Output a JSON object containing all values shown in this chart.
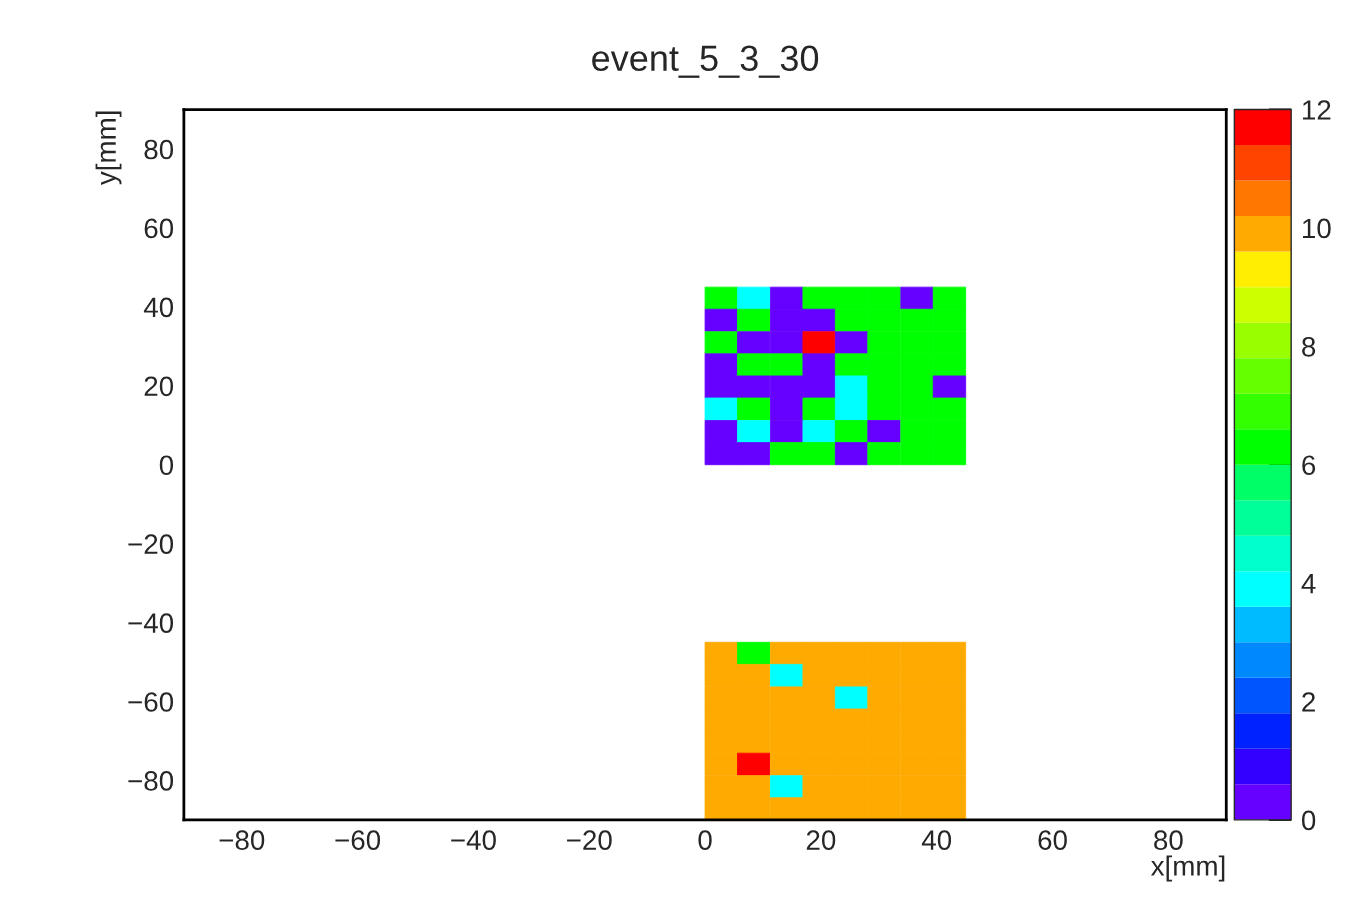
{
  "chart_data": {
    "type": "scatter",
    "title": "event_5_3_30",
    "xlabel": "x[mm]",
    "ylabel": "y[mm]",
    "marker": "square",
    "xlim": [
      -90,
      90
    ],
    "ylim": [
      -90,
      90
    ],
    "xticks": [
      {
        "value": -80,
        "label": "−80"
      },
      {
        "value": -60,
        "label": "−60"
      },
      {
        "value": -40,
        "label": "−40"
      },
      {
        "value": -20,
        "label": "−20"
      },
      0,
      20,
      40,
      60,
      80
    ],
    "yticks": [
      {
        "value": -80,
        "label": "−80"
      },
      {
        "value": -60,
        "label": "−60"
      },
      {
        "value": -40,
        "label": "−40"
      },
      {
        "value": -20,
        "label": "−20"
      },
      0,
      20,
      40,
      60,
      80
    ],
    "clim": [
      0,
      12
    ],
    "cticks": [
      0,
      2,
      4,
      6,
      8,
      10,
      12
    ],
    "x": [
      2.8,
      8.4,
      14.1,
      19.7,
      25.3,
      30.9,
      36.6,
      42.2,
      2.8,
      8.4,
      14.1,
      19.7,
      25.3,
      30.9,
      36.6,
      42.2,
      2.8,
      8.4,
      14.1,
      19.7,
      25.3,
      30.9,
      36.6,
      42.2,
      2.8,
      8.4,
      14.1,
      19.7,
      25.3,
      30.9,
      36.6,
      42.2,
      2.8,
      8.4,
      14.1,
      19.7,
      25.3,
      30.9,
      36.6,
      42.2,
      2.8,
      8.4,
      14.1,
      19.7,
      25.3,
      30.9,
      36.6,
      42.2,
      2.8,
      8.4,
      14.1,
      19.7,
      25.3,
      30.9,
      36.6,
      42.2,
      2.8,
      8.4,
      14.1,
      19.7,
      25.3,
      30.9,
      36.6,
      42.2,
      2.8,
      8.4,
      14.1,
      19.7,
      25.3,
      30.9,
      36.6,
      42.2,
      2.8,
      8.4,
      14.1,
      19.7,
      25.3,
      30.9,
      36.6,
      42.2,
      2.8,
      8.4,
      14.1,
      19.7,
      25.3,
      30.9,
      36.6,
      42.2,
      2.8,
      8.4,
      14.1,
      19.7,
      25.3,
      30.9,
      36.6,
      42.2,
      2.8,
      8.4,
      14.1,
      19.7,
      25.3,
      30.9,
      36.6,
      42.2,
      2.8,
      8.4,
      14.1,
      19.7,
      25.3,
      30.9,
      36.6,
      42.2,
      2.8,
      8.4,
      14.1,
      19.7,
      25.3,
      30.9,
      36.6,
      42.2,
      2.8,
      8.4,
      14.1,
      19.7,
      25.3,
      30.9,
      36.6,
      42.2
    ],
    "values": [
      42.2,
      42.2,
      42.2,
      42.2,
      42.2,
      42.2,
      42.2,
      42.2,
      36.6,
      36.6,
      36.6,
      36.6,
      36.6,
      36.6,
      36.6,
      36.6,
      30.9,
      30.9,
      30.9,
      30.9,
      30.9,
      30.9,
      30.9,
      30.9,
      25.3,
      25.3,
      25.3,
      25.3,
      25.3,
      25.3,
      25.3,
      25.3,
      19.7,
      19.7,
      19.7,
      19.7,
      19.7,
      19.7,
      19.7,
      19.7,
      14.1,
      14.1,
      14.1,
      14.1,
      14.1,
      14.1,
      14.1,
      14.1,
      8.4,
      8.4,
      8.4,
      8.4,
      8.4,
      8.4,
      8.4,
      8.4,
      2.8,
      2.8,
      2.8,
      2.8,
      2.8,
      2.8,
      2.8,
      2.8,
      -47.8,
      -47.8,
      -47.8,
      -47.8,
      -47.8,
      -47.8,
      -47.8,
      -47.8,
      -53.4,
      -53.4,
      -53.4,
      -53.4,
      -53.4,
      -53.4,
      -53.4,
      -53.4,
      -59.1,
      -59.1,
      -59.1,
      -59.1,
      -59.1,
      -59.1,
      -59.1,
      -59.1,
      -64.7,
      -64.7,
      -64.7,
      -64.7,
      -64.7,
      -64.7,
      -64.7,
      -64.7,
      -70.3,
      -70.3,
      -70.3,
      -70.3,
      -70.3,
      -70.3,
      -70.3,
      -70.3,
      -75.9,
      -75.9,
      -75.9,
      -75.9,
      -75.9,
      -75.9,
      -75.9,
      -75.9,
      -81.6,
      -81.6,
      -81.6,
      -81.6,
      -81.6,
      -81.6,
      -81.6,
      -81.6,
      -87.2,
      -87.2,
      -87.2,
      -87.2,
      -87.2,
      -87.2,
      -87.2,
      -87.2
    ],
    "cvalues": [
      6.3,
      4,
      0.3,
      6.3,
      6.3,
      6.3,
      0.3,
      6.3,
      0.3,
      6.3,
      0.3,
      0.3,
      6.3,
      6.3,
      6.3,
      6.3,
      6.3,
      0.3,
      0.3,
      11.7,
      0.3,
      6.3,
      6.3,
      6.3,
      0.3,
      6.3,
      6.3,
      0.3,
      6.3,
      6.3,
      6.3,
      6.3,
      0.3,
      0.3,
      0.3,
      0.3,
      4,
      6.3,
      6.3,
      0.3,
      4,
      6.3,
      0.3,
      6.3,
      4,
      6.3,
      6.3,
      6.3,
      0.3,
      4,
      0.3,
      4,
      6.3,
      0.3,
      6.3,
      6.3,
      0.3,
      0.3,
      6.3,
      6.3,
      0.3,
      6.3,
      6.3,
      6.3,
      10,
      6.3,
      10,
      10,
      10,
      10,
      10,
      10,
      10,
      10,
      4,
      10,
      10,
      10,
      10,
      10,
      10,
      10,
      10,
      10,
      4,
      10,
      10,
      10,
      10,
      10,
      10,
      10,
      10,
      10,
      10,
      10,
      10,
      10,
      10,
      10,
      10,
      10,
      10,
      10,
      10,
      11.7,
      10,
      10,
      10,
      10,
      10,
      10,
      10,
      10,
      4,
      10,
      10,
      10,
      10,
      10,
      10,
      10,
      10,
      10,
      10,
      10,
      10,
      10
    ]
  }
}
